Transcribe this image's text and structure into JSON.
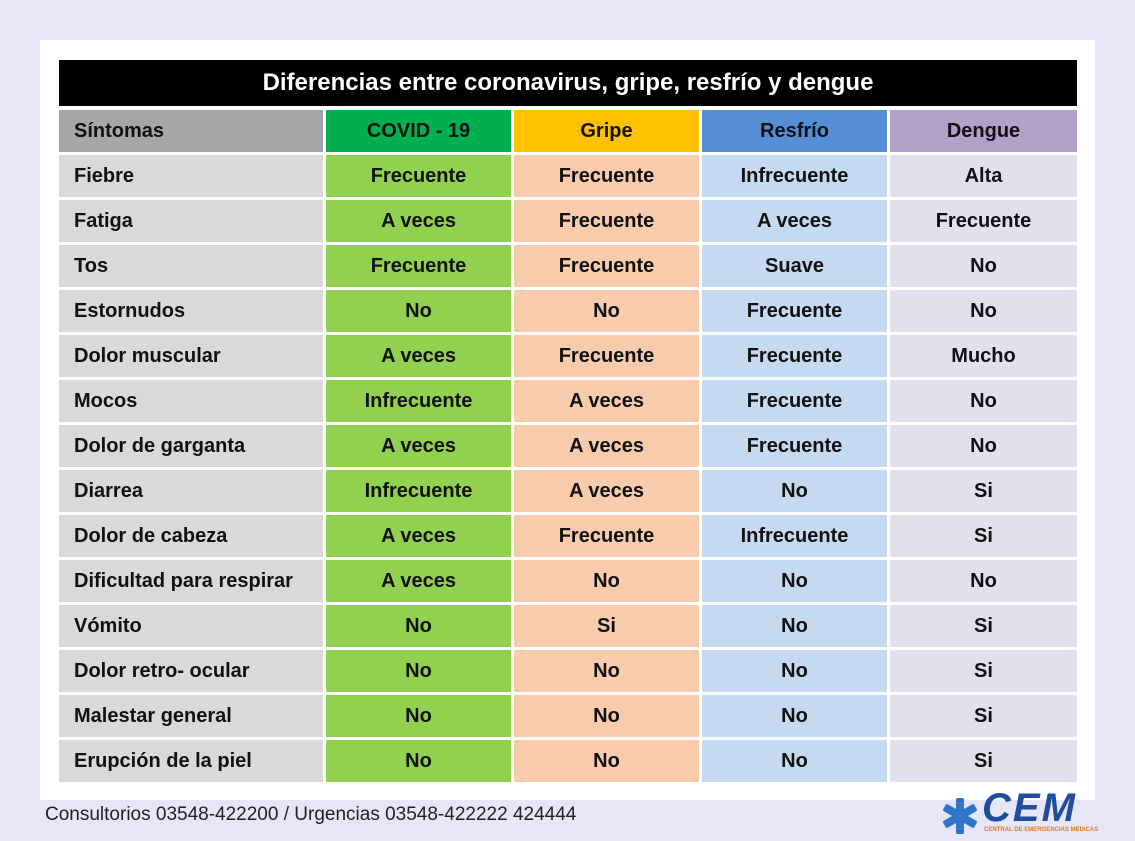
{
  "title": "Diferencias entre coronavirus, gripe, resfrío y dengue",
  "table": {
    "header": [
      "Síntomas",
      "COVID - 19",
      "Gripe",
      "Resfrío",
      "Dengue"
    ],
    "rows": [
      [
        "Fiebre",
        "Frecuente",
        "Frecuente",
        "Infrecuente",
        "Alta"
      ],
      [
        "Fatiga",
        "A veces",
        "Frecuente",
        "A veces",
        "Frecuente"
      ],
      [
        "Tos",
        "Frecuente",
        "Frecuente",
        "Suave",
        "No"
      ],
      [
        "Estornudos",
        "No",
        "No",
        "Frecuente",
        "No"
      ],
      [
        "Dolor muscular",
        "A veces",
        "Frecuente",
        "Frecuente",
        "Mucho"
      ],
      [
        "Mocos",
        "Infrecuente",
        "A veces",
        "Frecuente",
        "No"
      ],
      [
        "Dolor de garganta",
        "A veces",
        "A veces",
        "Frecuente",
        "No"
      ],
      [
        "Diarrea",
        "Infrecuente",
        "A veces",
        "No",
        "Si"
      ],
      [
        "Dolor de cabeza",
        "A veces",
        "Frecuente",
        "Infrecuente",
        "Si"
      ],
      [
        "Dificultad para respirar",
        "A veces",
        "No",
        "No",
        "No"
      ],
      [
        "Vómito",
        "No",
        "Si",
        "No",
        "Si"
      ],
      [
        "Dolor retro- ocular",
        "No",
        "No",
        "No",
        "Si"
      ],
      [
        "Malestar general",
        "No",
        "No",
        "No",
        "Si"
      ],
      [
        "Erupción de la piel",
        "No",
        "No",
        "No",
        "Si"
      ]
    ]
  },
  "footer": {
    "contact": "Consultorios 03548-422200 / Urgencias 03548-422222 424444"
  },
  "logo": {
    "name": "CEM",
    "tagline": "CENTRAL DE EMERGENCIAS MEDICAS"
  }
}
